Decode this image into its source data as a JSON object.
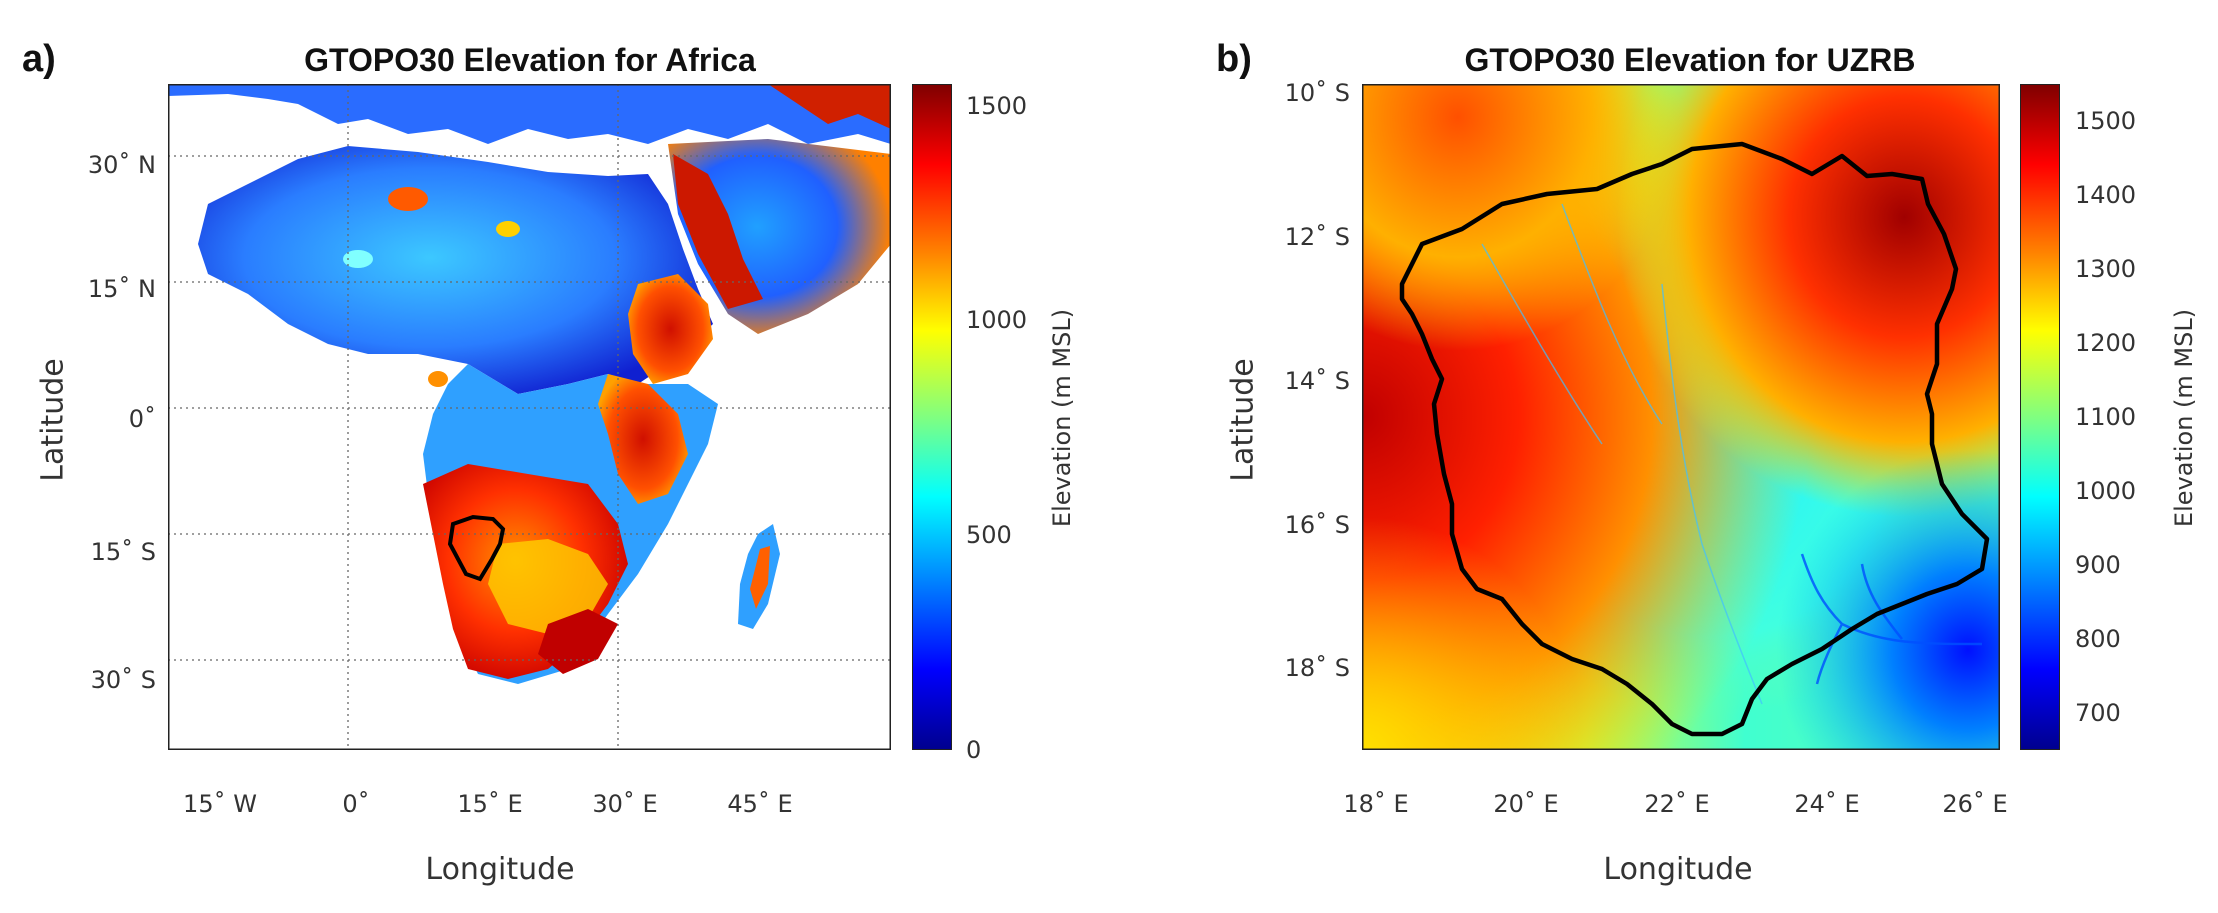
{
  "panels": [
    {
      "label": "a)",
      "title": "GTOPO30 Elevation for Africa",
      "xlabel": "Longitude",
      "ylabel": "Latitude",
      "xticks": [
        "15˚ W",
        "0˚",
        "15˚ E",
        "30˚ E",
        "45˚ E"
      ],
      "yticks": [
        "30˚ N",
        "15˚ N",
        "0˚",
        "15˚ S",
        "30˚ S"
      ],
      "colorbar": {
        "label": "Elevation (m MSL)",
        "ticks": [
          "1500",
          "1000",
          "500",
          "0"
        ],
        "range": [
          0,
          1550
        ]
      },
      "map_extent": {
        "lon": [
          -20,
          60
        ],
        "lat": [
          -40,
          38
        ]
      },
      "outline": "Upper Zambezi River Basin boundary"
    },
    {
      "label": "b)",
      "title": "GTOPO30 Elevation for UZRB",
      "xlabel": "Longitude",
      "ylabel": "Latitude",
      "xticks": [
        "18˚ E",
        "20˚ E",
        "22˚ E",
        "24˚ E",
        "26˚ E"
      ],
      "yticks": [
        "10˚ S",
        "12˚ S",
        "14˚ S",
        "16˚ S",
        "18˚ S"
      ],
      "colorbar": {
        "label": "Elevation (m MSL)",
        "ticks": [
          "1500",
          "1400",
          "1300",
          "1200",
          "1100",
          "1000",
          "900",
          "800",
          "700"
        ],
        "range": [
          650,
          1550
        ]
      },
      "map_extent": {
        "lon": [
          18,
          26.3
        ],
        "lat": [
          -19.2,
          -10
        ]
      },
      "outline": "Upper Zambezi River Basin boundary"
    }
  ],
  "colors": {
    "jet_dark_red": "#800000",
    "jet_red": "#ff0000",
    "jet_orange": "#ff8000",
    "jet_yellow": "#ffff00",
    "jet_cyan": "#00ffff",
    "jet_blue": "#0000ff",
    "jet_navy": "#00008f",
    "outline": "#000000"
  }
}
